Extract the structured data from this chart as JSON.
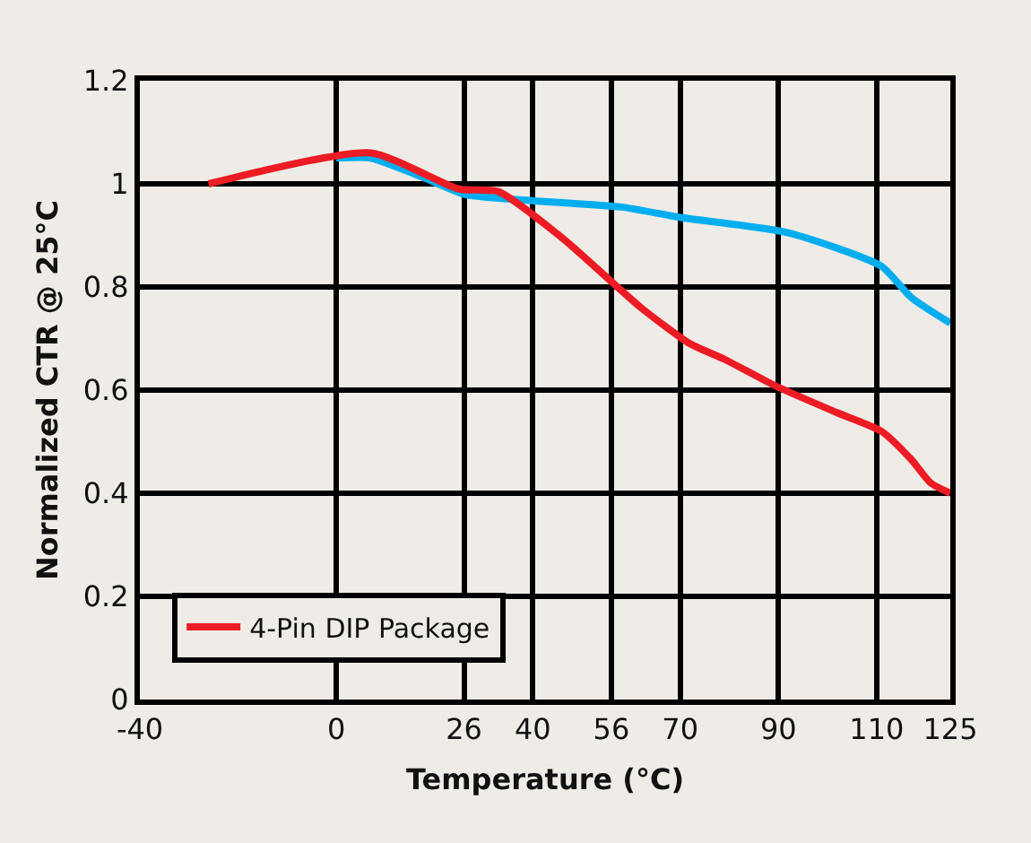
{
  "chart_data": {
    "type": "line",
    "xlabel": "Temperature (°C)",
    "ylabel": "Normalized CTR @ 25°C",
    "xlim": [
      -40,
      125
    ],
    "xticks": [
      -40,
      0,
      26,
      40,
      56,
      70,
      90,
      110,
      125
    ],
    "ylim": [
      0,
      1.2
    ],
    "yticks": [
      0,
      0.2,
      0.4,
      0.6,
      0.8,
      {
        "value": 1,
        "label": "1"
      },
      1.2
    ],
    "grid": true,
    "legend": "bottom left",
    "line_style": "solid",
    "marker": "none",
    "series": [
      {
        "color": "#00aeef",
        "x": [
          0,
          7,
          17,
          26,
          36,
          58,
          70,
          92,
          111,
          117,
          125
        ],
        "values": [
          1.05,
          1.05,
          1.015,
          0.98,
          0.97,
          0.955,
          0.935,
          0.905,
          0.84,
          0.78,
          0.73
        ]
      },
      {
        "name": "4-Pin DIP Package",
        "color": "#ed1c24",
        "x": [
          -26,
          7,
          25,
          33,
          46,
          62,
          72,
          79,
          89,
          102,
          111,
          117,
          121,
          125
        ],
        "values": [
          1.0,
          1.06,
          0.99,
          0.985,
          0.895,
          0.76,
          0.69,
          0.66,
          0.61,
          0.556,
          0.52,
          0.466,
          0.42,
          0.4
        ]
      }
    ]
  }
}
